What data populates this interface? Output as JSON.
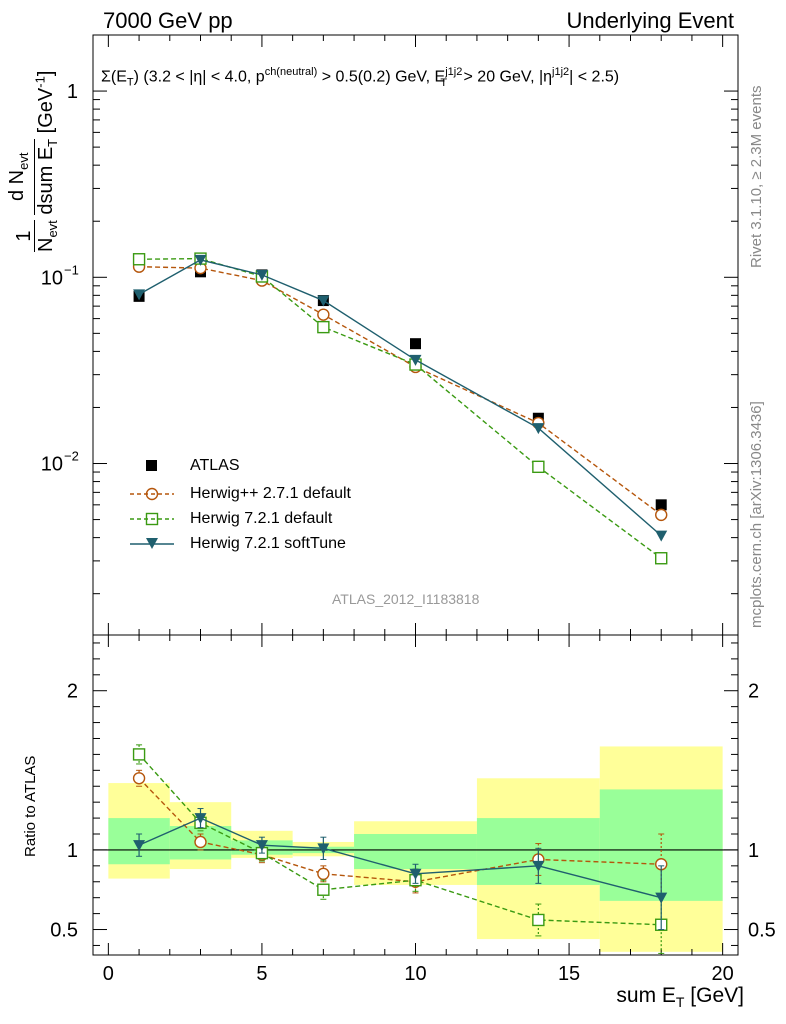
{
  "header": {
    "left": "7000 GeV pp",
    "right": "Underlying Event"
  },
  "side_labels": {
    "rivet": "Rivet 3.1.10, ≥ 2.3M events",
    "mcplots": "mcplots.cern.ch [arXiv:1306.3436]"
  },
  "watermark": "ATLAS_2012_I1183818",
  "colors": {
    "atlas": "#000000",
    "herwigpp": "#b5560c",
    "herwig721": "#3a9a12",
    "softtune": "#1f5f6e",
    "band_yellow": "#ffff99",
    "band_green": "#99ff99"
  },
  "chart_data": [
    {
      "type": "scatter",
      "title": "Σ(E_T) (3.2 < |η| < 4.0, p_T^ch(neutral) > 0.5(0.2) GeV, E_T^j1j2 > 20 GeV, |η^j1j2| < 2.5)",
      "ylabel": "1/N_evt dN_evt/dsum E_T [GeV^-1]",
      "xlabel": "sum E_T [GeV]",
      "yscale": "log",
      "xlim": [
        -0.5,
        20.5
      ],
      "ylim": [
        0.0012,
        2.0
      ],
      "y_tick_labels": [
        "10^-2",
        "10^-1",
        "1"
      ],
      "legend_position": "lower-left",
      "x": [
        1,
        3,
        5,
        7,
        10,
        14,
        18
      ],
      "bin_edges": [
        0,
        2,
        4,
        6,
        8,
        12,
        16,
        20
      ],
      "series": [
        {
          "name": "ATLAS",
          "marker": "filled-square",
          "line": "none",
          "values": [
            0.079,
            0.107,
            0.103,
            0.075,
            0.044,
            0.0175,
            0.006
          ]
        },
        {
          "name": "Herwig++ 2.7.1 default",
          "marker": "open-circle",
          "line": "dashed",
          "values": [
            0.114,
            0.112,
            0.096,
            0.063,
            0.033,
            0.0165,
            0.0053
          ]
        },
        {
          "name": "Herwig 7.2.1 default",
          "marker": "open-square",
          "line": "dashed",
          "values": [
            0.125,
            0.126,
            0.101,
            0.054,
            0.034,
            0.0096,
            0.0031
          ]
        },
        {
          "name": "Herwig 7.2.1 softTune",
          "marker": "filled-triangle-down",
          "line": "solid",
          "values": [
            0.081,
            0.124,
            0.103,
            0.075,
            0.036,
            0.0155,
            0.0041
          ]
        }
      ]
    },
    {
      "type": "scatter",
      "ylabel": "Ratio to ATLAS",
      "xlabel": "sum E_T [GeV]",
      "xlim": [
        -0.5,
        20.5
      ],
      "ylim": [
        0.34,
        2.35
      ],
      "y_tick_labels": [
        "0.5",
        "1",
        "2"
      ],
      "x_tick_labels": [
        "0",
        "5",
        "10",
        "15",
        "20"
      ],
      "x": [
        1,
        3,
        5,
        7,
        10,
        14,
        18
      ],
      "bin_edges": [
        0,
        2,
        4,
        6,
        8,
        12,
        16,
        20
      ],
      "bands": {
        "yellow": [
          [
            0.82,
            1.42
          ],
          [
            0.88,
            1.3
          ],
          [
            0.95,
            1.12
          ],
          [
            0.96,
            1.05
          ],
          [
            0.78,
            1.18
          ],
          [
            0.44,
            1.45
          ],
          [
            0.36,
            1.65
          ]
        ],
        "green": [
          [
            0.91,
            1.2
          ],
          [
            0.94,
            1.15
          ],
          [
            0.97,
            1.06
          ],
          [
            0.98,
            1.02
          ],
          [
            0.88,
            1.1
          ],
          [
            0.78,
            1.2
          ],
          [
            0.68,
            1.38
          ]
        ]
      },
      "series": [
        {
          "name": "Herwig++ 2.7.1 default",
          "values": [
            1.45,
            1.05,
            0.97,
            0.85,
            0.8,
            0.94,
            0.91
          ],
          "errors": [
            0.05,
            0.05,
            0.05,
            0.05,
            0.07,
            0.1,
            0.19
          ]
        },
        {
          "name": "Herwig 7.2.1 default",
          "values": [
            1.6,
            1.17,
            0.98,
            0.75,
            0.81,
            0.56,
            0.53
          ],
          "errors": [
            0.06,
            0.05,
            0.05,
            0.06,
            0.07,
            0.1,
            0.18
          ]
        },
        {
          "name": "Herwig 7.2.1 softTune",
          "values": [
            1.03,
            1.2,
            1.03,
            1.01,
            0.85,
            0.9,
            0.7
          ],
          "errors": [
            0.07,
            0.06,
            0.05,
            0.07,
            0.06,
            0.11,
            0.2
          ]
        }
      ]
    }
  ]
}
